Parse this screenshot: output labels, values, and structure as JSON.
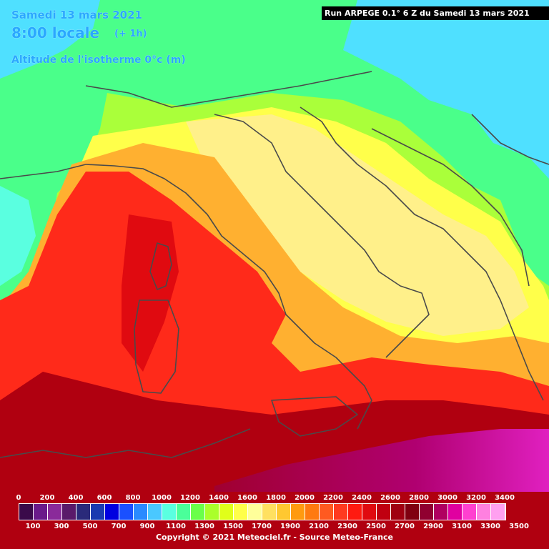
{
  "header": {
    "date": "Samedi 13 mars 2021",
    "time": "8:00 locale",
    "offset": "(+ 1h)",
    "parameter": "Altitude de l'isotherme 0°c (m)",
    "run": "Run ARPEGE 0.1° 6 Z du Samedi 13 mars 2021"
  },
  "legend": {
    "upper_labels": [
      "0",
      "200",
      "400",
      "600",
      "800",
      "1000",
      "1200",
      "1400",
      "1600",
      "1800",
      "2000",
      "2200",
      "2400",
      "2600",
      "2800",
      "3000",
      "3200",
      "3400"
    ],
    "lower_labels": [
      "100",
      "300",
      "500",
      "700",
      "900",
      "1100",
      "1300",
      "1500",
      "1700",
      "1900",
      "2100",
      "2300",
      "2500",
      "2700",
      "2900",
      "3100",
      "3300",
      "3500"
    ],
    "colors": [
      "#3a0a4a",
      "#6a1a8a",
      "#8a2a9a",
      "#5a1a6a",
      "#2a2a7a",
      "#1a3ab0",
      "#0000e0",
      "#1a50ff",
      "#2a8aff",
      "#4ac8ff",
      "#5affe0",
      "#4aff9a",
      "#6aff4a",
      "#aaff2a",
      "#e0ff1a",
      "#ffff4a",
      "#ffff9a",
      "#ffe060",
      "#ffc830",
      "#ff9a10",
      "#ff7a10",
      "#ff5a20",
      "#ff3a20",
      "#ff1a10",
      "#e00a10",
      "#c00010",
      "#a00010",
      "#800010",
      "#900030",
      "#b00060",
      "#e000a0",
      "#ff40d0",
      "#ff80e0",
      "#ffa0f0"
    ],
    "copyright": "Copyright © 2021 Meteociel.fr - Source Meteo-France"
  },
  "map": {
    "colors": {
      "cyan": "#4fe0ff",
      "teal": "#5affe0",
      "green": "#4aff8a",
      "lime": "#aaff3a",
      "yellow": "#ffff4a",
      "light_yellow": "#fff08a",
      "orange": "#ffb030",
      "red": "#ff2a1a",
      "dark_red": "#b00010",
      "magenta": "#c0008a",
      "coastline": "#4a4a4a"
    }
  }
}
